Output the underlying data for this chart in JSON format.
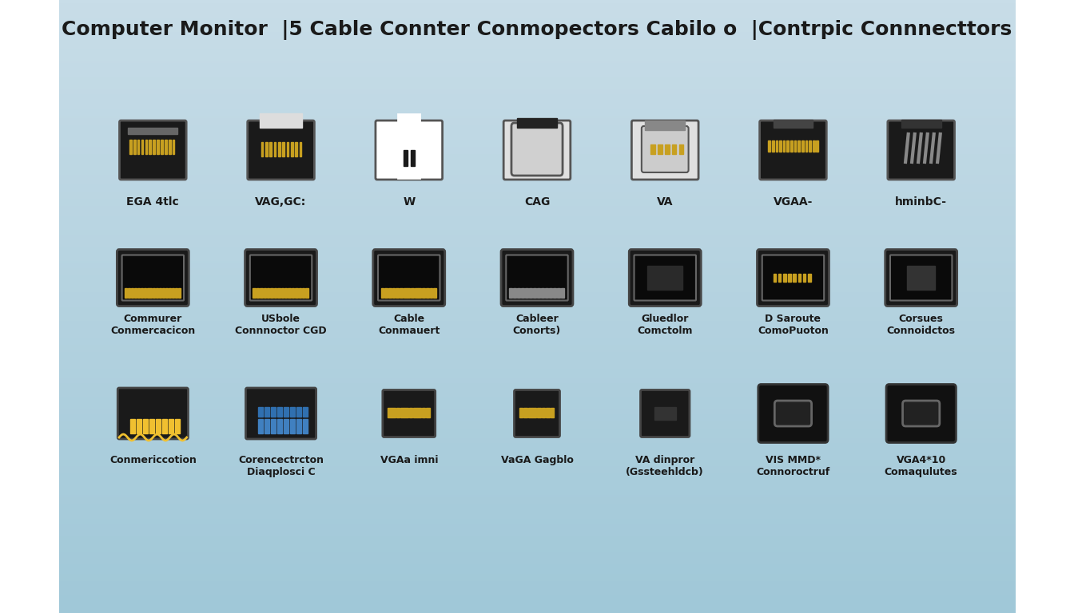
{
  "title": "Computer Monitor  |5 Cable Connter Conmopectors Cabilo o  |Contrpic Connnecttors",
  "background_gradient_top": "#c8dde8",
  "background_gradient_bottom": "#a8c8d8",
  "connectors_row1": [
    {
      "name": "EGA 4tlc",
      "shape": "wide_flat",
      "color": "#1a1a1a",
      "accent": "#888888"
    },
    {
      "name": "VAG,GC:",
      "shape": "wide_flat_tall",
      "color": "#1a1a1a",
      "accent": "#888888"
    },
    {
      "name": "W",
      "shape": "narrow_tall",
      "color": "#ffffff",
      "accent": "#1a1a1a"
    },
    {
      "name": "CAG",
      "shape": "wide_rounded",
      "color": "#e0e0e0",
      "accent": "#1a1a1a"
    },
    {
      "name": "VA",
      "shape": "wide_rounded_pins",
      "color": "#e0e0e0",
      "accent": "#c8a020"
    },
    {
      "name": "VGAA-",
      "shape": "wide_flat2",
      "color": "#1a1a1a",
      "accent": "#888888"
    },
    {
      "name": "hminbC-",
      "shape": "wide_diagonal",
      "color": "#1a1a1a",
      "accent": "#888888"
    }
  ],
  "connectors_row2": [
    {
      "name": "Commurer\nConmercacicon",
      "shape": "wide_pins",
      "color": "#1a1a1a",
      "accent": "#c8a020"
    },
    {
      "name": "USbole\nConnnoctor CGD",
      "shape": "wide_pins2",
      "color": "#1a1a1a",
      "accent": "#c8a020"
    },
    {
      "name": "Cable\nConmauert",
      "shape": "wide_pins3",
      "color": "#1a1a1a",
      "accent": "#c8a020"
    },
    {
      "name": "Cableer\nConorts)",
      "shape": "wide_pins4",
      "color": "#1a1a1a",
      "accent": "#888888"
    },
    {
      "name": "Gluedlor\nComctolm",
      "shape": "wide_dark",
      "color": "#1a1a1a",
      "accent": "#888888"
    },
    {
      "name": "D Saroute\nComoPuoton",
      "shape": "small_pins",
      "color": "#1a1a1a",
      "accent": "#c8a020"
    },
    {
      "name": "Corsues\nConnoidctos",
      "shape": "small_rect",
      "color": "#1a1a1a",
      "accent": "#888888"
    }
  ],
  "connectors_row3": [
    {
      "name": "Conmericcotion",
      "shape": "vga_style",
      "color": "#c8a020",
      "accent": "#f0c030"
    },
    {
      "name": "Corencectrcton\nDiaqplosci C",
      "shape": "dvi_style",
      "color": "#4080c0",
      "accent": "#2060a0"
    },
    {
      "name": "VGAa imni",
      "shape": "hdmi_mini",
      "color": "#1a1a1a",
      "accent": "#c8a020"
    },
    {
      "name": "VaGA Gagblo",
      "shape": "hdmi_micro",
      "color": "#1a1a1a",
      "accent": "#888888"
    },
    {
      "name": "VA dinpror\n(Gssteehldcb)",
      "shape": "dp_mini",
      "color": "#1a1a1a",
      "accent": "#888888"
    },
    {
      "name": "VIS MMD*\nConnoroctruf",
      "shape": "usbc_style",
      "color": "#1a1a1a",
      "accent": "#ffffff"
    },
    {
      "name": "VGA4*10\nComaqulutes",
      "shape": "usbc_style2",
      "color": "#1a1a1a",
      "accent": "#888888"
    }
  ]
}
